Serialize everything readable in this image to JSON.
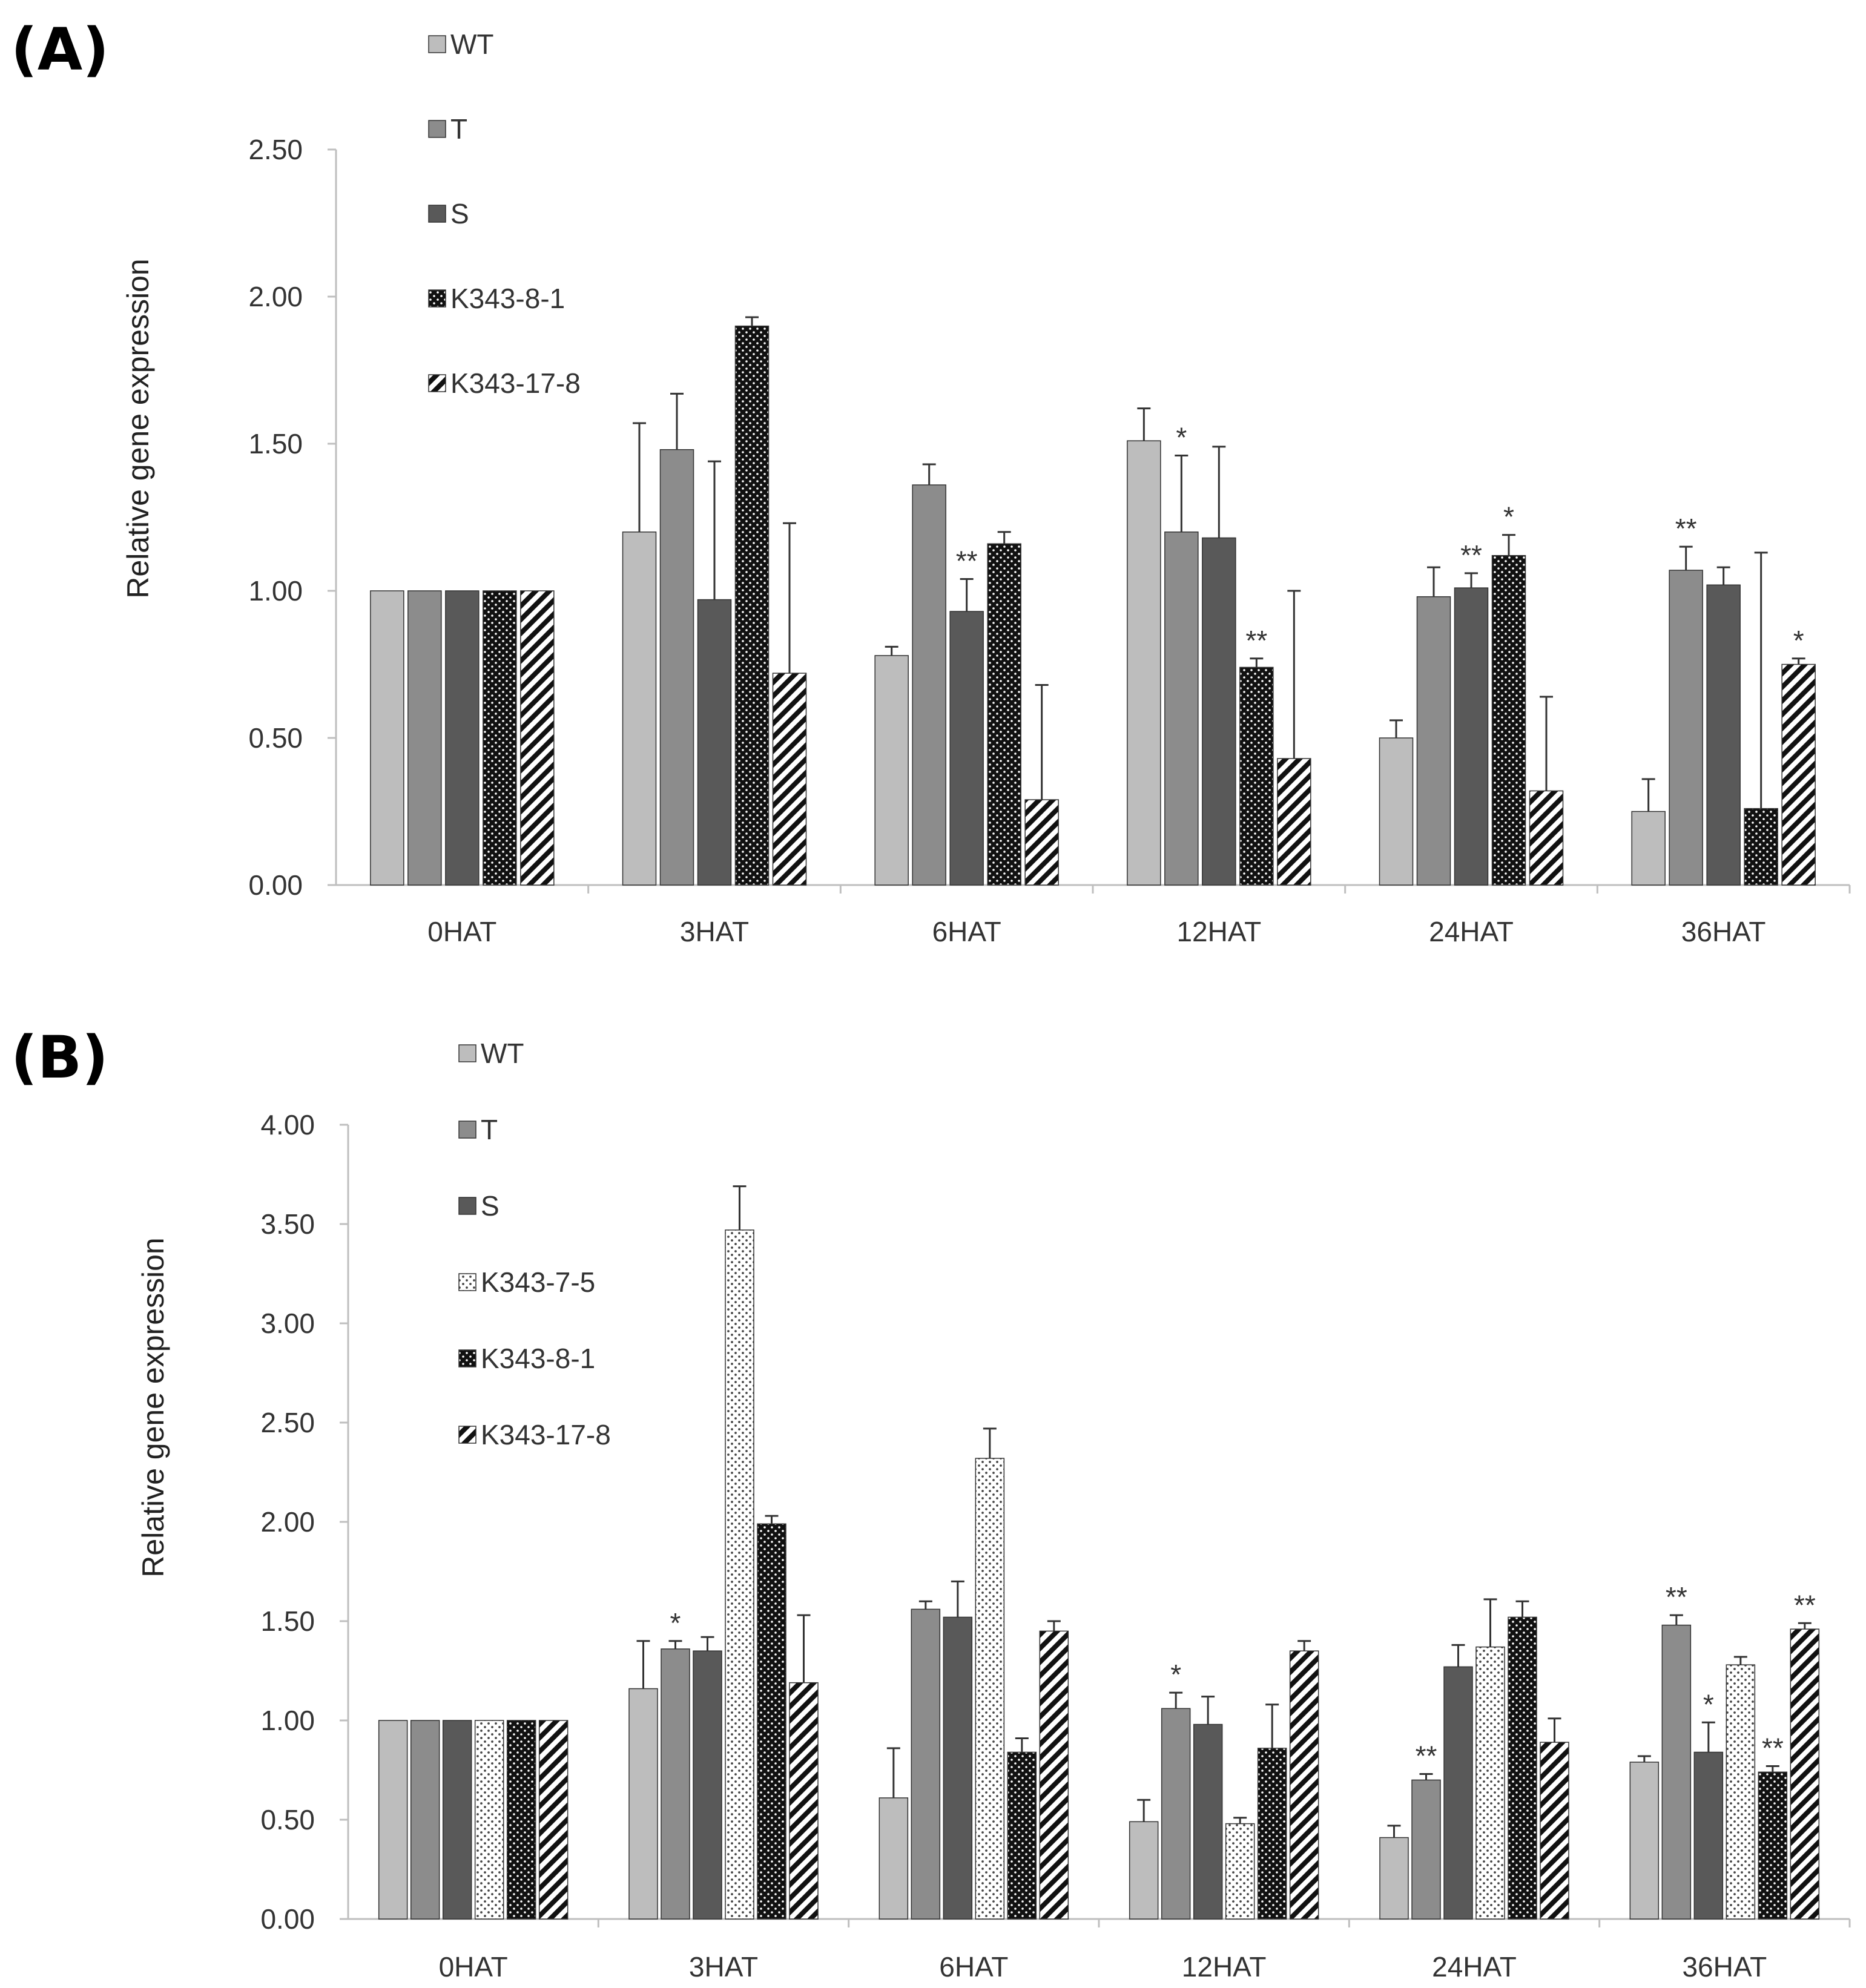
{
  "chart_data": [
    {
      "panel_label": "(A)",
      "type": "bar",
      "ylabel": "Relative gene expression",
      "ylim": [
        0,
        2.5
      ],
      "yticks": [
        "0.00",
        "0.50",
        "1.00",
        "1.50",
        "2.00",
        "2.50"
      ],
      "categories": [
        "0HAT",
        "3HAT",
        "6HAT",
        "12HAT",
        "24HAT",
        "36HAT"
      ],
      "legend_position": "top-left",
      "series": [
        {
          "name": "WT",
          "pattern": "light-grey",
          "values": [
            1.0,
            1.2,
            0.78,
            1.51,
            0.5,
            0.25
          ],
          "errors": [
            0,
            0.37,
            0.03,
            0.11,
            0.06,
            0.11
          ],
          "sig": [
            "",
            "",
            "",
            "",
            "",
            ""
          ]
        },
        {
          "name": "T",
          "pattern": "mid-grey",
          "values": [
            1.0,
            1.48,
            1.36,
            1.2,
            0.98,
            1.07
          ],
          "errors": [
            0,
            0.19,
            0.07,
            0.26,
            0.1,
            0.08
          ],
          "sig": [
            "",
            "",
            "",
            "*",
            "",
            "**"
          ]
        },
        {
          "name": "S",
          "pattern": "dark-grey",
          "values": [
            1.0,
            0.97,
            0.93,
            1.18,
            1.01,
            1.02
          ],
          "errors": [
            0,
            0.47,
            0.11,
            0.31,
            0.05,
            0.06
          ],
          "sig": [
            "",
            "",
            "**",
            "",
            "**",
            ""
          ]
        },
        {
          "name": "K343-8-1",
          "pattern": "black-dots",
          "values": [
            1.0,
            1.9,
            1.16,
            0.74,
            1.12,
            0.26
          ],
          "errors": [
            0,
            0.03,
            0.04,
            0.03,
            0.07,
            0.87
          ],
          "sig": [
            "",
            "",
            "",
            "**",
            "*",
            ""
          ]
        },
        {
          "name": "K343-17-8",
          "pattern": "diagonal",
          "values": [
            1.0,
            0.72,
            0.29,
            0.43,
            0.32,
            0.75
          ],
          "errors": [
            0,
            0.51,
            0.39,
            0.57,
            0.32,
            0.02
          ],
          "sig": [
            "",
            "",
            "",
            "",
            "",
            "*"
          ]
        }
      ]
    },
    {
      "panel_label": "(B)",
      "type": "bar",
      "ylabel": "Relative gene expression",
      "ylim": [
        0,
        4.0
      ],
      "yticks": [
        "0.00",
        "0.50",
        "1.00",
        "1.50",
        "2.00",
        "2.50",
        "3.00",
        "3.50",
        "4.00"
      ],
      "categories": [
        "0HAT",
        "3HAT",
        "6HAT",
        "12HAT",
        "24HAT",
        "36HAT"
      ],
      "legend_position": "top-left",
      "series": [
        {
          "name": "WT",
          "pattern": "light-grey",
          "values": [
            1.0,
            1.16,
            0.61,
            0.49,
            0.41,
            0.79
          ],
          "errors": [
            0,
            0.24,
            0.25,
            0.11,
            0.06,
            0.03
          ],
          "sig": [
            "",
            "",
            "",
            "",
            "",
            ""
          ]
        },
        {
          "name": "T",
          "pattern": "mid-grey",
          "values": [
            1.0,
            1.36,
            1.56,
            1.06,
            0.7,
            1.48
          ],
          "errors": [
            0,
            0.04,
            0.04,
            0.08,
            0.03,
            0.05
          ],
          "sig": [
            "",
            "*",
            "",
            "*",
            "**",
            "**"
          ]
        },
        {
          "name": "S",
          "pattern": "dark-grey",
          "values": [
            1.0,
            1.35,
            1.52,
            0.98,
            1.27,
            0.84
          ],
          "errors": [
            0,
            0.07,
            0.18,
            0.14,
            0.11,
            0.15
          ],
          "sig": [
            "",
            "",
            "",
            "",
            "",
            "*"
          ]
        },
        {
          "name": "K343-7-5",
          "pattern": "white-dots",
          "values": [
            1.0,
            3.47,
            2.32,
            0.48,
            1.37,
            1.28
          ],
          "errors": [
            0,
            0.22,
            0.15,
            0.03,
            0.24,
            0.04
          ],
          "sig": [
            "",
            "",
            "",
            "",
            "",
            ""
          ]
        },
        {
          "name": "K343-8-1",
          "pattern": "black-dots",
          "values": [
            1.0,
            1.99,
            0.84,
            0.86,
            1.52,
            0.74
          ],
          "errors": [
            0,
            0.04,
            0.07,
            0.22,
            0.08,
            0.03
          ],
          "sig": [
            "",
            "",
            "",
            "",
            "",
            "**"
          ]
        },
        {
          "name": "K343-17-8",
          "pattern": "diagonal",
          "values": [
            1.0,
            1.19,
            1.45,
            1.35,
            0.89,
            1.46
          ],
          "errors": [
            0,
            0.34,
            0.05,
            0.05,
            0.12,
            0.03
          ],
          "sig": [
            "",
            "",
            "",
            "",
            "",
            "**"
          ]
        }
      ]
    }
  ]
}
